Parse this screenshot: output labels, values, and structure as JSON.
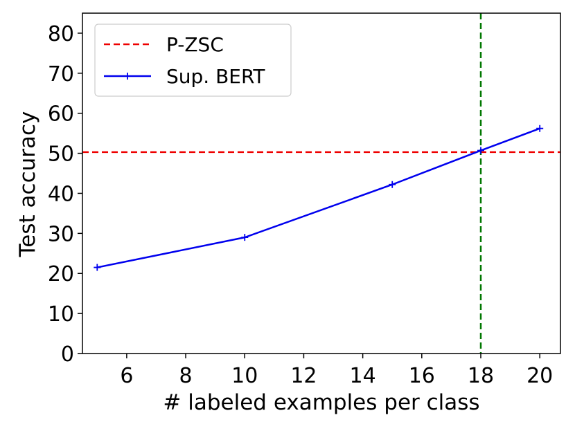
{
  "chart_data": {
    "type": "line",
    "xlabel": "# labeled examples per class",
    "ylabel": "Test accuracy",
    "xlim": [
      4.5,
      20.7
    ],
    "ylim": [
      0,
      85
    ],
    "xticks": [
      6,
      8,
      10,
      12,
      14,
      16,
      18,
      20
    ],
    "yticks": [
      0,
      10,
      20,
      30,
      40,
      50,
      60,
      70,
      80
    ],
    "grid": false,
    "legend_position": "top-left",
    "series": [
      {
        "name": "Sup. BERT",
        "color": "#0000ee",
        "style": "solid",
        "marker": "plus",
        "x": [
          5,
          10,
          15,
          18,
          20
        ],
        "y": [
          21.5,
          29.0,
          42.2,
          50.7,
          56.2
        ]
      }
    ],
    "reference_lines": [
      {
        "name": "P-ZSC",
        "orientation": "horizontal",
        "value": 50.3,
        "color": "#ee0000",
        "style": "dashed"
      },
      {
        "orientation": "vertical",
        "value": 18,
        "color": "#007700",
        "style": "dashed"
      }
    ]
  }
}
